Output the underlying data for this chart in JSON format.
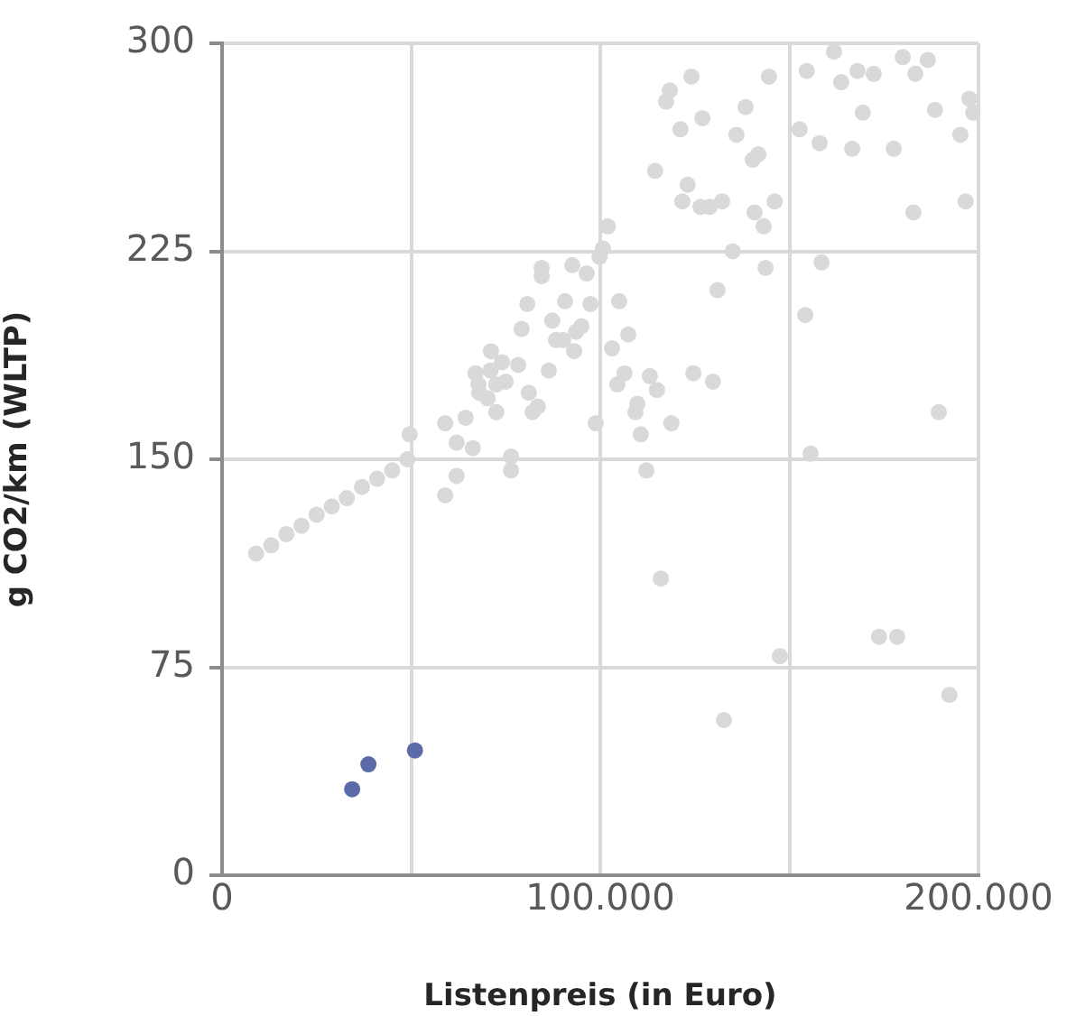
{
  "chart_data": {
    "type": "scatter",
    "xlabel": "Listenpreis (in Euro)",
    "ylabel": "g CO2/km (WLTP)",
    "xlim": [
      0,
      200000
    ],
    "xticks": [
      0,
      {
        "value": 50000,
        "label": null
      },
      {
        "value": 100000,
        "label": "100.000"
      },
      {
        "value": 150000,
        "label": null
      },
      {
        "value": 200000,
        "label": "200.000"
      }
    ],
    "ylim": [
      0,
      300
    ],
    "yticks": [
      0,
      75,
      150,
      225,
      300
    ],
    "grid": true,
    "legend": false,
    "marker": "circle",
    "series": [
      {
        "color": "#d9d9d9",
        "x": [
          9000,
          13000,
          17000,
          21000,
          25000,
          29000,
          33000,
          37000,
          41000,
          45000,
          49000,
          49600,
          59000,
          64400,
          66300,
          62000,
          62000,
          59000,
          71000,
          67000,
          68000,
          72500,
          102000,
          100700,
          99800,
          96400,
          92600,
          84500,
          84500,
          135000,
          131000,
          80700,
          90700,
          97400,
          105000,
          79200,
          87300,
          95000,
          93600,
          107400,
          88300,
          90200,
          93100,
          103100,
          71100,
          74000,
          78300,
          86400,
          67800,
          72500,
          75000,
          81100,
          70200,
          72500,
          82100,
          83500,
          104500,
          106400,
          113100,
          115000,
          124600,
          129800,
          109800,
          109300,
          118800,
          98800,
          110700,
          76400,
          76400,
          112200,
          116000,
          161800,
          154600,
          163700,
          168000,
          172300,
          180000,
          183300,
          186600,
          197600,
          198600,
          188500,
          195200,
          152700,
          158000,
          166600,
          177600,
          169400,
          196600,
          182800,
          158500,
          154200,
          124100,
          118400,
          117400,
          144600,
          138400,
          127000,
          121200,
          136000,
          141800,
          140300,
          114500,
          123100,
          121700,
          126500,
          128900,
          132200,
          140800,
          146100,
          143200,
          143700,
          189500,
          155600,
          147500,
          173700,
          178500,
          192300,
          132700
        ],
        "values": [
          116,
          119,
          123,
          126,
          130,
          133,
          136,
          140,
          143,
          146,
          150,
          159,
          163,
          165,
          154,
          156,
          144,
          137,
          182,
          181,
          174,
          167,
          234,
          226,
          223,
          217,
          220,
          219,
          216,
          225,
          211,
          206,
          207,
          206,
          207,
          197,
          200,
          198,
          196,
          195,
          193,
          193,
          189,
          190,
          189,
          185,
          184,
          182,
          177,
          177,
          178,
          174,
          172,
          167,
          167,
          169,
          177,
          181,
          180,
          175,
          181,
          178,
          170,
          167,
          163,
          163,
          159,
          151,
          146,
          146,
          107,
          297,
          290,
          286,
          290,
          289,
          295,
          289,
          294,
          280,
          275,
          276,
          267,
          269,
          264,
          262,
          262,
          275,
          243,
          239,
          221,
          202,
          288,
          283,
          279,
          288,
          277,
          273,
          269,
          267,
          260,
          258,
          254,
          249,
          243,
          241,
          241,
          243,
          239,
          243,
          234,
          219,
          167,
          152,
          79,
          86,
          86,
          65,
          56
        ]
      },
      {
        "color": "#5b6aa8",
        "x": [
          34400,
          38700,
          51000
        ],
        "values": [
          31,
          40,
          45
        ]
      }
    ]
  }
}
